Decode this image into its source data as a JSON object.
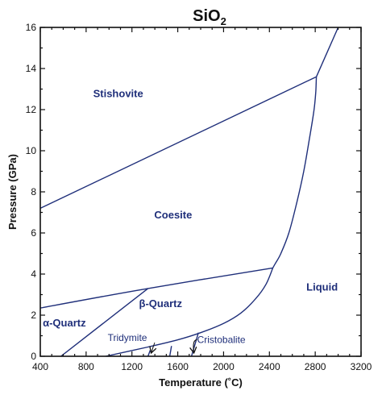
{
  "chart_data": {
    "type": "line",
    "title": "SiO",
    "title_subscript": "2",
    "xlabel": "Temperature (˚C)",
    "ylabel": "Pressure (GPa)",
    "xlim": [
      400,
      3200
    ],
    "ylim": [
      0,
      16
    ],
    "x_ticks": [
      400,
      800,
      1200,
      1600,
      2000,
      2400,
      2800,
      3200
    ],
    "y_ticks": [
      0,
      2,
      4,
      6,
      8,
      10,
      12,
      14,
      16
    ],
    "grid": false,
    "line_color": "#1f2f7a",
    "series": [
      {
        "x": [
          400,
          2810
        ],
        "y": [
          7.2,
          13.6
        ]
      },
      {
        "x": [
          2810,
          3000
        ],
        "y": [
          13.6,
          16.0
        ]
      },
      {
        "x": [
          2430,
          2450,
          2500,
          2570,
          2640,
          2700,
          2750,
          2790,
          2805,
          2810
        ],
        "y": [
          4.3,
          4.5,
          5.0,
          6.0,
          7.5,
          9.0,
          10.6,
          12.0,
          12.9,
          13.6
        ]
      },
      {
        "x": [
          400,
          1340,
          2430
        ],
        "y": [
          2.35,
          3.3,
          4.3
        ]
      },
      {
        "x": [
          580,
          1340
        ],
        "y": [
          0.0,
          3.3
        ]
      },
      {
        "x": [
          970,
          1340,
          1600,
          1800,
          2000,
          2150,
          2280,
          2370,
          2430
        ],
        "y": [
          0.0,
          0.45,
          0.8,
          1.15,
          1.6,
          2.1,
          2.8,
          3.5,
          4.3
        ]
      },
      {
        "x": [
          1340,
          1360
        ],
        "y": [
          0.0,
          0.3
        ]
      },
      {
        "x": [
          1530,
          1545
        ],
        "y": [
          0.0,
          0.5
        ]
      },
      {
        "x": [
          1720,
          1780
        ],
        "y": [
          0.0,
          1.15
        ]
      }
    ],
    "annotations": [
      {
        "text": "Stishovite",
        "x": 1080,
        "y": 12.6,
        "style": "phase"
      },
      {
        "text": "Coesite",
        "x": 1560,
        "y": 6.7,
        "style": "phase"
      },
      {
        "text": "Liquid",
        "x": 2860,
        "y": 3.2,
        "style": "phase"
      },
      {
        "text": "α-Quartz",
        "x": 610,
        "y": 1.45,
        "style": "phase"
      },
      {
        "text": "β-Quartz",
        "x": 1450,
        "y": 2.4,
        "style": "phase"
      },
      {
        "text": "Tridymite",
        "x": 1160,
        "y": 0.75,
        "style": "minor",
        "arrow_to": [
          1370,
          0.2
        ]
      },
      {
        "text": "Cristobalite",
        "x": 1980,
        "y": 0.65,
        "style": "minor",
        "arrow_to": [
          1740,
          0.2
        ]
      }
    ]
  }
}
